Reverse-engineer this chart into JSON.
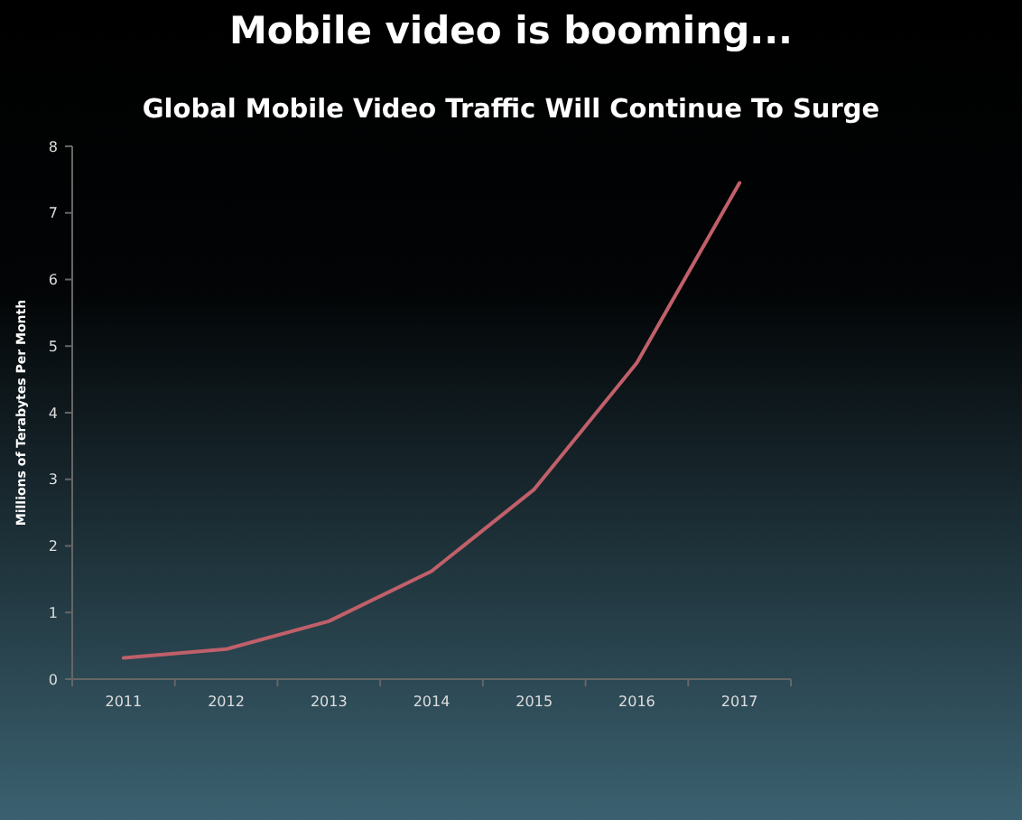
{
  "chart_data": {
    "type": "line",
    "title": "Mobile video is booming...",
    "subtitle": "Global Mobile Video Traffic Will Continue To Surge",
    "ylabel": "Millions of Terabytes Per Month",
    "categories": [
      "2011",
      "2012",
      "2013",
      "2014",
      "2015",
      "2016",
      "2017"
    ],
    "series": [
      {
        "color": "#c0606a",
        "values": [
          0.32,
          0.45,
          0.87,
          1.62,
          2.85,
          4.75,
          7.45
        ]
      }
    ],
    "ylim": [
      0,
      8
    ],
    "yticks": [
      0,
      1,
      2,
      3,
      4,
      5,
      6,
      7,
      8
    ],
    "grid": false,
    "marker": "none",
    "line_style": "solid"
  }
}
